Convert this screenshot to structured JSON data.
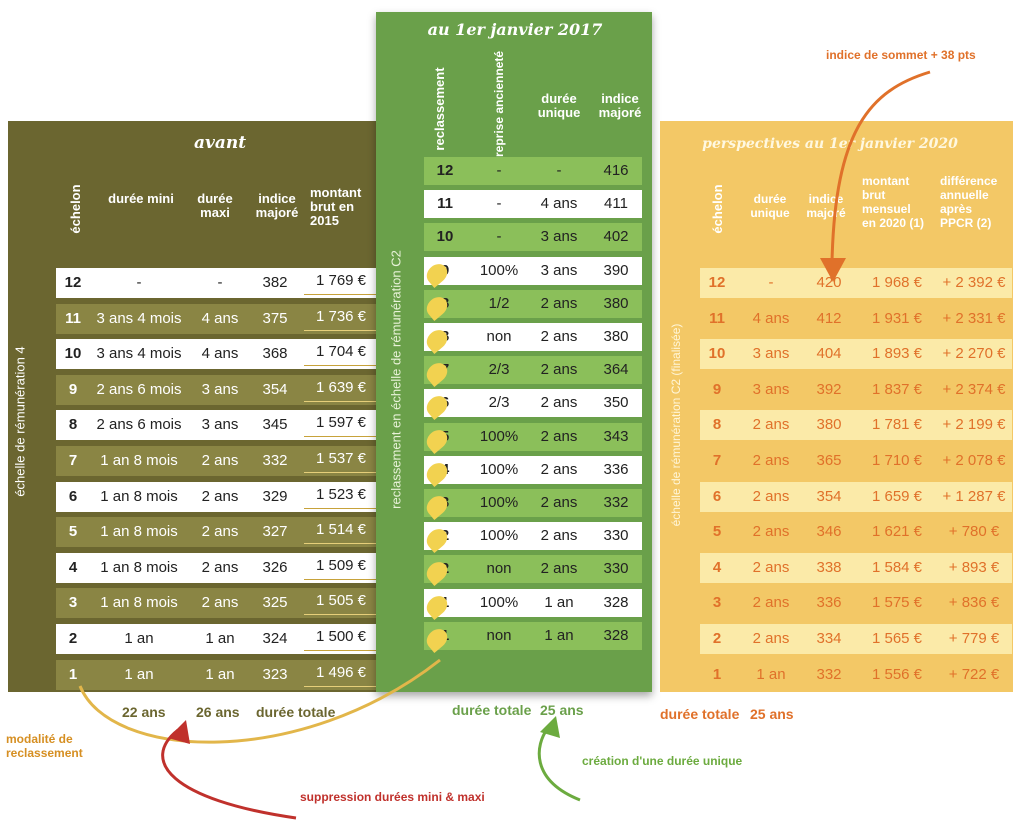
{
  "avant": {
    "title": "avant",
    "headers": [
      "échelon",
      "durée mini",
      "durée maxi",
      "indice majoré",
      "montant brut en 2015"
    ],
    "side_label": "échelle de rémunération 4",
    "rows": [
      {
        "ech": "12",
        "mini": "-",
        "maxi": "-",
        "ind": "382",
        "mont": "1 769 €"
      },
      {
        "ech": "11",
        "mini": "3 ans 4 mois",
        "maxi": "4 ans",
        "ind": "375",
        "mont": "1 736 €"
      },
      {
        "ech": "10",
        "mini": "3 ans 4 mois",
        "maxi": "4 ans",
        "ind": "368",
        "mont": "1 704 €"
      },
      {
        "ech": "9",
        "mini": "2 ans 6 mois",
        "maxi": "3 ans",
        "ind": "354",
        "mont": "1 639 €"
      },
      {
        "ech": "8",
        "mini": "2 ans 6 mois",
        "maxi": "3 ans",
        "ind": "345",
        "mont": "1 597 €"
      },
      {
        "ech": "7",
        "mini": "1 an 8 mois",
        "maxi": "2 ans",
        "ind": "332",
        "mont": "1 537 €"
      },
      {
        "ech": "6",
        "mini": "1 an 8 mois",
        "maxi": "2 ans",
        "ind": "329",
        "mont": "1 523 €"
      },
      {
        "ech": "5",
        "mini": "1 an 8 mois",
        "maxi": "2 ans",
        "ind": "327",
        "mont": "1 514 €"
      },
      {
        "ech": "4",
        "mini": "1 an 8 mois",
        "maxi": "2 ans",
        "ind": "326",
        "mont": "1 509 €"
      },
      {
        "ech": "3",
        "mini": "1 an 8 mois",
        "maxi": "2 ans",
        "ind": "325",
        "mont": "1 505 €"
      },
      {
        "ech": "2",
        "mini": "1 an",
        "maxi": "1 an",
        "ind": "324",
        "mont": "1 500 €"
      },
      {
        "ech": "1",
        "mini": "1 an",
        "maxi": "1 an",
        "ind": "323",
        "mont": "1 496 €"
      }
    ],
    "footer": {
      "mini": "22 ans",
      "maxi": "26 ans",
      "label": "durée totale"
    }
  },
  "mid": {
    "title": "au 1er janvier 2017",
    "headers": [
      "reclassement",
      "reprise ancienneté",
      "durée unique",
      "indice majoré"
    ],
    "side_label": "reclassement en échelle de rémunération C2",
    "rows": [
      {
        "ech": "12",
        "rep": "-",
        "dur": "-",
        "ind": "416"
      },
      {
        "ech": "11",
        "rep": "-",
        "dur": "4 ans",
        "ind": "411"
      },
      {
        "ech": "10",
        "rep": "-",
        "dur": "3 ans",
        "ind": "402"
      },
      {
        "ech": "9",
        "rep": "100%",
        "dur": "3 ans",
        "ind": "390"
      },
      {
        "ech": "8",
        "rep": "1/2",
        "dur": "2 ans",
        "ind": "380"
      },
      {
        "ech": "8",
        "rep": "non",
        "dur": "2 ans",
        "ind": "380"
      },
      {
        "ech": "7",
        "rep": "2/3",
        "dur": "2 ans",
        "ind": "364"
      },
      {
        "ech": "6",
        "rep": "2/3",
        "dur": "2 ans",
        "ind": "350"
      },
      {
        "ech": "5",
        "rep": "100%",
        "dur": "2 ans",
        "ind": "343"
      },
      {
        "ech": "4",
        "rep": "100%",
        "dur": "2 ans",
        "ind": "336"
      },
      {
        "ech": "3",
        "rep": "100%",
        "dur": "2 ans",
        "ind": "332"
      },
      {
        "ech": "2",
        "rep": "100%",
        "dur": "2 ans",
        "ind": "330"
      },
      {
        "ech": "2",
        "rep": "non",
        "dur": "2 ans",
        "ind": "330"
      },
      {
        "ech": "1",
        "rep": "100%",
        "dur": "1 an",
        "ind": "328"
      },
      {
        "ech": "1",
        "rep": "non",
        "dur": "1 an",
        "ind": "328"
      }
    ],
    "footer": {
      "label": "durée totale",
      "value": "25 ans"
    }
  },
  "persp": {
    "title": "perspectives au 1er janvier 2020",
    "headers": [
      "échelon",
      "durée unique",
      "indice majoré",
      "montant brut mensuel en 2020 (1)",
      "différence annuelle après PPCR (2)"
    ],
    "side_label": "échelle de rémunération C2 (finalisée)",
    "rows": [
      {
        "ech": "12",
        "dur": "-",
        "ind": "420",
        "mont": "1 968 €",
        "diff": "+ 2 392 €"
      },
      {
        "ech": "11",
        "dur": "4 ans",
        "ind": "412",
        "mont": "1 931 €",
        "diff": "+ 2 331 €"
      },
      {
        "ech": "10",
        "dur": "3 ans",
        "ind": "404",
        "mont": "1 893 €",
        "diff": "+ 2 270 €"
      },
      {
        "ech": "9",
        "dur": "3 ans",
        "ind": "392",
        "mont": "1 837 €",
        "diff": "+ 2 374 €"
      },
      {
        "ech": "8",
        "dur": "2 ans",
        "ind": "380",
        "mont": "1 781 €",
        "diff": "+ 2 199 €"
      },
      {
        "ech": "7",
        "dur": "2 ans",
        "ind": "365",
        "mont": "1 710 €",
        "diff": "+ 2 078 €"
      },
      {
        "ech": "6",
        "dur": "2 ans",
        "ind": "354",
        "mont": "1 659 €",
        "diff": "+ 1 287 €"
      },
      {
        "ech": "5",
        "dur": "2 ans",
        "ind": "346",
        "mont": "1 621 €",
        "diff": "+ 780 €"
      },
      {
        "ech": "4",
        "dur": "2 ans",
        "ind": "338",
        "mont": "1 584 €",
        "diff": "+ 893 €"
      },
      {
        "ech": "3",
        "dur": "2 ans",
        "ind": "336",
        "mont": "1 575 €",
        "diff": "+ 836 €"
      },
      {
        "ech": "2",
        "dur": "2 ans",
        "ind": "334",
        "mont": "1 565 €",
        "diff": "+ 779 €"
      },
      {
        "ech": "1",
        "dur": "1 an",
        "ind": "332",
        "mont": "1 556 €",
        "diff": "+ 722 €"
      }
    ],
    "footer": {
      "label": "durée totale",
      "value": "25 ans"
    }
  },
  "annotations": {
    "sommet": "indice de sommet + 38 pts",
    "modalite": "modalité de reclassement",
    "suppression": "suppression durées mini & maxi",
    "creation": "création d'une durée unique"
  },
  "colors": {
    "olive_dark": "#6b6630",
    "olive_light": "#8a8544",
    "green_dark": "#6aa04a",
    "green_light": "#8bbf5a",
    "orange": "#e0712a",
    "yellow_light": "#fbeaa8",
    "yellow_mid": "#f3c866",
    "red": "#c0312c",
    "green_arrow": "#6cab3f"
  }
}
